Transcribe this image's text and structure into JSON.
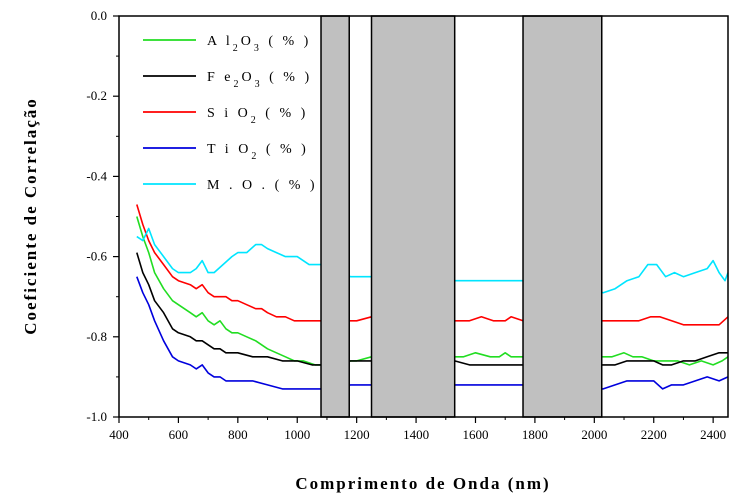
{
  "chart_data": {
    "type": "line",
    "xlabel": "Comprimento de Onda (nm)",
    "ylabel": "Coeficiente de Correlação",
    "xlim": [
      400,
      2450
    ],
    "ylim": [
      -1.0,
      0.0
    ],
    "xticks": [
      400,
      600,
      800,
      1000,
      1200,
      1400,
      1600,
      1800,
      2000,
      2200,
      2400
    ],
    "yticks": [
      0.0,
      -0.2,
      -0.4,
      -0.6,
      -0.8,
      -1.0
    ],
    "ytick_labels": [
      "0.0",
      "-0.2",
      "-0.4",
      "-0.6",
      "-0.8",
      "-1.0"
    ],
    "grid": false,
    "legend_position": "top-left",
    "masked_bands": [
      [
        1080,
        1175
      ],
      [
        1250,
        1530
      ],
      [
        1760,
        2025
      ]
    ],
    "mask_color": "#c0c0c0",
    "series": [
      {
        "name": "Al2O3 (%)",
        "legend": {
          "base1": "A l",
          "sub1": "2",
          "base2": "O",
          "sub2": "3",
          "unit": "( % )"
        },
        "color": "#22dd22",
        "x": [
          460,
          480,
          500,
          520,
          550,
          580,
          600,
          640,
          660,
          680,
          700,
          720,
          740,
          760,
          780,
          800,
          830,
          860,
          880,
          900,
          930,
          960,
          990,
          1020,
          1060,
          1080,
          1180,
          1200,
          1250,
          1530,
          1560,
          1600,
          1650,
          1680,
          1700,
          1720,
          1760,
          2030,
          2060,
          2100,
          2130,
          2160,
          2200,
          2240,
          2280,
          2320,
          2360,
          2400,
          2430,
          2450
        ],
        "y": [
          -0.5,
          -0.55,
          -0.59,
          -0.64,
          -0.68,
          -0.71,
          -0.72,
          -0.74,
          -0.75,
          -0.74,
          -0.76,
          -0.77,
          -0.76,
          -0.78,
          -0.79,
          -0.79,
          -0.8,
          -0.81,
          -0.82,
          -0.83,
          -0.84,
          -0.85,
          -0.86,
          -0.86,
          -0.87,
          -0.87,
          -0.86,
          -0.86,
          -0.85,
          -0.85,
          -0.85,
          -0.84,
          -0.85,
          -0.85,
          -0.84,
          -0.85,
          -0.85,
          -0.85,
          -0.85,
          -0.84,
          -0.85,
          -0.85,
          -0.86,
          -0.86,
          -0.86,
          -0.87,
          -0.86,
          -0.87,
          -0.86,
          -0.85
        ]
      },
      {
        "name": "Fe2O3 (%)",
        "legend": {
          "base1": "F e",
          "sub1": "2",
          "base2": "O",
          "sub2": "3",
          "unit": "( % )"
        },
        "color": "#000000",
        "x": [
          460,
          480,
          500,
          520,
          550,
          580,
          600,
          640,
          660,
          680,
          700,
          720,
          740,
          760,
          800,
          850,
          900,
          950,
          1000,
          1050,
          1080,
          1180,
          1200,
          1250,
          1530,
          1580,
          1620,
          1660,
          1700,
          1740,
          1760,
          2030,
          2070,
          2110,
          2150,
          2200,
          2230,
          2260,
          2300,
          2340,
          2380,
          2420,
          2450
        ],
        "y": [
          -0.59,
          -0.64,
          -0.67,
          -0.71,
          -0.74,
          -0.78,
          -0.79,
          -0.8,
          -0.81,
          -0.81,
          -0.82,
          -0.83,
          -0.83,
          -0.84,
          -0.84,
          -0.85,
          -0.85,
          -0.86,
          -0.86,
          -0.87,
          -0.87,
          -0.86,
          -0.86,
          -0.86,
          -0.86,
          -0.87,
          -0.87,
          -0.87,
          -0.87,
          -0.87,
          -0.87,
          -0.87,
          -0.87,
          -0.86,
          -0.86,
          -0.86,
          -0.87,
          -0.87,
          -0.86,
          -0.86,
          -0.85,
          -0.84,
          -0.84
        ]
      },
      {
        "name": "SiO2 (%)",
        "legend": {
          "base1": "S i O",
          "sub1": "2",
          "base2": "",
          "sub2": "",
          "unit": "( % )"
        },
        "color": "#ff0000",
        "x": [
          460,
          480,
          500,
          520,
          550,
          580,
          600,
          640,
          660,
          680,
          700,
          720,
          740,
          760,
          780,
          800,
          830,
          860,
          880,
          900,
          930,
          960,
          990,
          1020,
          1060,
          1080,
          1180,
          1200,
          1250,
          1530,
          1580,
          1620,
          1660,
          1700,
          1720,
          1760,
          2030,
          2070,
          2110,
          2150,
          2190,
          2220,
          2260,
          2300,
          2340,
          2380,
          2420,
          2450
        ],
        "y": [
          -0.47,
          -0.52,
          -0.56,
          -0.59,
          -0.62,
          -0.65,
          -0.66,
          -0.67,
          -0.68,
          -0.67,
          -0.69,
          -0.7,
          -0.7,
          -0.7,
          -0.71,
          -0.71,
          -0.72,
          -0.73,
          -0.73,
          -0.74,
          -0.75,
          -0.75,
          -0.76,
          -0.76,
          -0.76,
          -0.76,
          -0.76,
          -0.76,
          -0.75,
          -0.76,
          -0.76,
          -0.75,
          -0.76,
          -0.76,
          -0.75,
          -0.76,
          -0.76,
          -0.76,
          -0.76,
          -0.76,
          -0.75,
          -0.75,
          -0.76,
          -0.77,
          -0.77,
          -0.77,
          -0.77,
          -0.75
        ]
      },
      {
        "name": "TiO2 (%)",
        "legend": {
          "base1": "T i O",
          "sub1": "2",
          "base2": "",
          "sub2": "",
          "unit": "( % )"
        },
        "color": "#0000dd",
        "x": [
          460,
          480,
          500,
          520,
          550,
          580,
          600,
          640,
          660,
          680,
          700,
          720,
          740,
          760,
          800,
          850,
          900,
          950,
          1000,
          1050,
          1080,
          1180,
          1200,
          1250,
          1530,
          1580,
          1620,
          1660,
          1700,
          1740,
          1760,
          2030,
          2070,
          2110,
          2150,
          2200,
          2230,
          2260,
          2300,
          2340,
          2380,
          2420,
          2450
        ],
        "y": [
          -0.65,
          -0.69,
          -0.72,
          -0.76,
          -0.81,
          -0.85,
          -0.86,
          -0.87,
          -0.88,
          -0.87,
          -0.89,
          -0.9,
          -0.9,
          -0.91,
          -0.91,
          -0.91,
          -0.92,
          -0.93,
          -0.93,
          -0.93,
          -0.93,
          -0.92,
          -0.92,
          -0.92,
          -0.92,
          -0.92,
          -0.92,
          -0.92,
          -0.92,
          -0.92,
          -0.92,
          -0.93,
          -0.92,
          -0.91,
          -0.91,
          -0.91,
          -0.93,
          -0.92,
          -0.92,
          -0.91,
          -0.9,
          -0.91,
          -0.9
        ]
      },
      {
        "name": "M.O. (%)",
        "legend": {
          "base1": "M . O .",
          "sub1": "",
          "base2": "",
          "sub2": "",
          "unit": "( % )"
        },
        "color": "#00e5ff",
        "x": [
          460,
          480,
          500,
          520,
          550,
          580,
          600,
          640,
          660,
          680,
          700,
          720,
          750,
          780,
          800,
          830,
          860,
          880,
          900,
          930,
          960,
          1000,
          1040,
          1080,
          1180,
          1200,
          1250,
          1530,
          1580,
          1620,
          1660,
          1700,
          1740,
          1760,
          2030,
          2070,
          2110,
          2150,
          2180,
          2210,
          2240,
          2270,
          2300,
          2340,
          2380,
          2400,
          2420,
          2440,
          2450
        ],
        "y": [
          -0.55,
          -0.56,
          -0.53,
          -0.57,
          -0.6,
          -0.63,
          -0.64,
          -0.64,
          -0.63,
          -0.61,
          -0.64,
          -0.64,
          -0.62,
          -0.6,
          -0.59,
          -0.59,
          -0.57,
          -0.57,
          -0.58,
          -0.59,
          -0.6,
          -0.6,
          -0.62,
          -0.62,
          -0.65,
          -0.65,
          -0.65,
          -0.66,
          -0.66,
          -0.66,
          -0.66,
          -0.66,
          -0.66,
          -0.66,
          -0.69,
          -0.68,
          -0.66,
          -0.65,
          -0.62,
          -0.62,
          -0.65,
          -0.64,
          -0.65,
          -0.64,
          -0.63,
          -0.61,
          -0.64,
          -0.66,
          -0.64
        ]
      }
    ]
  }
}
